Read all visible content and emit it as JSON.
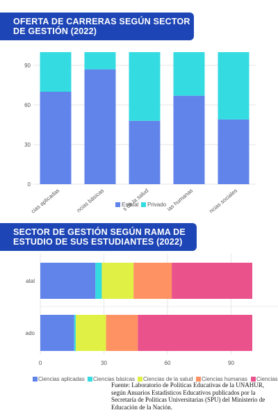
{
  "banners": {
    "top_line1": "OFERTA DE CARRERAS SEGÚN SECTOR",
    "top_line2": "DE GESTIÓN (2022)",
    "bottom_line1": "SECTOR DE GESTIÓN SEGÚN RAMA DE",
    "bottom_line2": "ESTUDIO DE SUS ESTUDIANTES (2022)"
  },
  "colors": {
    "banner": "#1d45b5",
    "estatal": "#6184ea",
    "privado": "#34dbe1",
    "ciencias_aplicadas": "#6184ea",
    "ciencias_basicas": "#34dbe1",
    "ciencias_salud": "#e0f045",
    "ciencias_humanas": "#ff9263",
    "ciencias_sociales": "#ea528c"
  },
  "source": {
    "line1": "Fuente: Laboratorio de Políticas Educativas de la UNAHUR,",
    "line2": "según Anuarios Estadísticos Educativos publicados por la",
    "line3": "Secretaría de Políticas Universitarias (SPU) del Ministerio de",
    "line4": "Educación de la Nación."
  },
  "chart_data": [
    {
      "type": "bar",
      "stacked": true,
      "orientation": "vertical",
      "categories": [
        "Ciencias aplicadas",
        "Ciencias básicas",
        "Ciencias de la salud",
        "Ciencias humanas",
        "Ciencias sociales"
      ],
      "category_labels_visible": [
        "cias aplicadas",
        "ncias básicas",
        "s de la salud",
        "ias humanas",
        "ncias sociales"
      ],
      "series": [
        {
          "name": "Estatal",
          "values": [
            70,
            87,
            48,
            67,
            49
          ]
        },
        {
          "name": "Privado",
          "values": [
            30,
            13,
            52,
            33,
            51
          ]
        }
      ],
      "ylim": [
        0,
        100
      ],
      "yticks": [
        "0",
        "30",
        "60",
        "90"
      ],
      "legend": "bottom",
      "grid": true
    },
    {
      "type": "bar",
      "stacked": true,
      "orientation": "horizontal",
      "categories": [
        "Estatal",
        "Privado"
      ],
      "category_labels_visible": [
        "atal",
        "ado"
      ],
      "series": [
        {
          "name": "Ciencias aplicadas",
          "values": [
            26,
            16
          ]
        },
        {
          "name": "Ciencias básicas",
          "values": [
            3,
            0.7
          ]
        },
        {
          "name": "Ciencias de la salud",
          "values": [
            15,
            14.3
          ]
        },
        {
          "name": "Ciencias humanas",
          "values": [
            18,
            15
          ]
        },
        {
          "name": "Ciencias sociales",
          "values": [
            38,
            54
          ]
        }
      ],
      "legend_labels_visible": [
        "Ciencias aplicadas",
        "Ciencias básicas",
        "Ciencias de la salud",
        "Ciencias humanas",
        "Ciencias s"
      ],
      "xlim": [
        0,
        100
      ],
      "xticks": [
        "0",
        "30",
        "60",
        "90"
      ],
      "legend": "bottom",
      "grid": true
    }
  ]
}
